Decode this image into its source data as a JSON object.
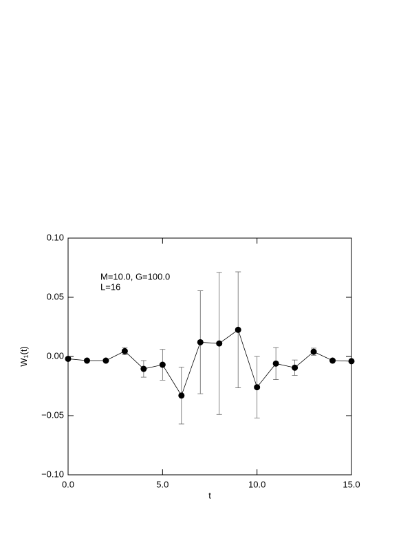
{
  "chart_data": {
    "type": "errorbar-line",
    "xlabel": "t",
    "ylabel": {
      "main": "W",
      "sub": "1",
      "suffix": "(t)"
    },
    "annotations": [
      "M=10.0, G=100.0",
      "L=16"
    ],
    "x": [
      0,
      1,
      2,
      3,
      4,
      5,
      6,
      7,
      8,
      9,
      10,
      11,
      12,
      13,
      14,
      15
    ],
    "values": [
      -0.002,
      -0.0035,
      -0.0035,
      0.0045,
      -0.0105,
      -0.007,
      -0.033,
      0.012,
      0.011,
      0.0225,
      -0.026,
      -0.006,
      -0.0095,
      0.004,
      -0.0035,
      -0.004
    ],
    "errors": [
      0.001,
      0.001,
      0.001,
      0.003,
      0.007,
      0.013,
      0.024,
      0.0435,
      0.06,
      0.049,
      0.026,
      0.0135,
      0.0065,
      0.003,
      0.001,
      0.001
    ],
    "color": "#000000",
    "xlim": [
      0,
      15
    ],
    "ylim": [
      -0.1,
      0.1
    ],
    "xticks": [
      {
        "value": 0,
        "label": "0.0"
      },
      {
        "value": 5,
        "label": "5.0"
      },
      {
        "value": 10,
        "label": "10.0"
      },
      {
        "value": 15,
        "label": "15.0"
      }
    ],
    "yticks": [
      {
        "value": -0.1,
        "label": "−0.10"
      },
      {
        "value": -0.05,
        "label": "−0.05"
      },
      {
        "value": 0,
        "label": "0.00"
      },
      {
        "value": 0.05,
        "label": "0.05"
      },
      {
        "value": 0.1,
        "label": "0.10"
      }
    ]
  }
}
